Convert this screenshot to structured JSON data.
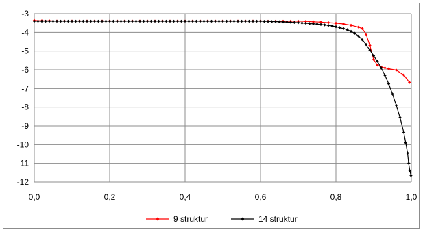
{
  "chart_data": {
    "type": "line",
    "title": "",
    "xlabel": "",
    "ylabel": "",
    "xlim": [
      0,
      1
    ],
    "ylim": [
      -12,
      -3
    ],
    "grid": true,
    "legend_position": "bottom",
    "x_ticks": [
      "0,0",
      "0,2",
      "0,4",
      "0,6",
      "0,8",
      "1,0"
    ],
    "y_ticks": [
      "-3",
      "-4",
      "-5",
      "-6",
      "-7",
      "-8",
      "-9",
      "-10",
      "-11",
      "-12"
    ],
    "series": [
      {
        "name": "9 struktur",
        "color": "#ff0000",
        "marker": "diamond",
        "points": [
          [
            0.0,
            -3.36
          ],
          [
            0.02,
            -3.38
          ],
          [
            0.04,
            -3.38
          ],
          [
            0.06,
            -3.39
          ],
          [
            0.08,
            -3.39
          ],
          [
            0.1,
            -3.39
          ],
          [
            0.12,
            -3.39
          ],
          [
            0.14,
            -3.39
          ],
          [
            0.16,
            -3.39
          ],
          [
            0.18,
            -3.39
          ],
          [
            0.2,
            -3.39
          ],
          [
            0.22,
            -3.39
          ],
          [
            0.24,
            -3.39
          ],
          [
            0.26,
            -3.39
          ],
          [
            0.28,
            -3.39
          ],
          [
            0.3,
            -3.39
          ],
          [
            0.32,
            -3.39
          ],
          [
            0.34,
            -3.39
          ],
          [
            0.36,
            -3.39
          ],
          [
            0.38,
            -3.39
          ],
          [
            0.4,
            -3.39
          ],
          [
            0.42,
            -3.39
          ],
          [
            0.44,
            -3.39
          ],
          [
            0.46,
            -3.39
          ],
          [
            0.48,
            -3.39
          ],
          [
            0.5,
            -3.39
          ],
          [
            0.52,
            -3.39
          ],
          [
            0.54,
            -3.39
          ],
          [
            0.56,
            -3.39
          ],
          [
            0.58,
            -3.39
          ],
          [
            0.6,
            -3.39
          ],
          [
            0.62,
            -3.4
          ],
          [
            0.64,
            -3.4
          ],
          [
            0.66,
            -3.4
          ],
          [
            0.68,
            -3.4
          ],
          [
            0.7,
            -3.4
          ],
          [
            0.72,
            -3.41
          ],
          [
            0.74,
            -3.43
          ],
          [
            0.76,
            -3.45
          ],
          [
            0.78,
            -3.48
          ],
          [
            0.8,
            -3.51
          ],
          [
            0.82,
            -3.55
          ],
          [
            0.84,
            -3.62
          ],
          [
            0.86,
            -3.72
          ],
          [
            0.87,
            -3.8
          ],
          [
            0.88,
            -4.1
          ],
          [
            0.89,
            -4.7
          ],
          [
            0.9,
            -5.45
          ],
          [
            0.91,
            -5.75
          ],
          [
            0.92,
            -5.85
          ],
          [
            0.93,
            -5.9
          ],
          [
            0.94,
            -5.95
          ],
          [
            0.96,
            -6.02
          ],
          [
            0.98,
            -6.28
          ],
          [
            0.995,
            -6.68
          ]
        ]
      },
      {
        "name": "14 struktur",
        "color": "#000000",
        "marker": "diamond",
        "points": [
          [
            0.0,
            -3.4
          ],
          [
            0.01,
            -3.4
          ],
          [
            0.02,
            -3.4
          ],
          [
            0.03,
            -3.4
          ],
          [
            0.04,
            -3.4
          ],
          [
            0.05,
            -3.4
          ],
          [
            0.06,
            -3.4
          ],
          [
            0.07,
            -3.4
          ],
          [
            0.08,
            -3.4
          ],
          [
            0.09,
            -3.4
          ],
          [
            0.1,
            -3.4
          ],
          [
            0.11,
            -3.4
          ],
          [
            0.12,
            -3.4
          ],
          [
            0.13,
            -3.4
          ],
          [
            0.14,
            -3.4
          ],
          [
            0.15,
            -3.4
          ],
          [
            0.16,
            -3.4
          ],
          [
            0.17,
            -3.4
          ],
          [
            0.18,
            -3.4
          ],
          [
            0.19,
            -3.4
          ],
          [
            0.2,
            -3.4
          ],
          [
            0.21,
            -3.4
          ],
          [
            0.22,
            -3.4
          ],
          [
            0.23,
            -3.4
          ],
          [
            0.24,
            -3.4
          ],
          [
            0.25,
            -3.4
          ],
          [
            0.26,
            -3.4
          ],
          [
            0.27,
            -3.4
          ],
          [
            0.28,
            -3.4
          ],
          [
            0.29,
            -3.4
          ],
          [
            0.3,
            -3.4
          ],
          [
            0.31,
            -3.4
          ],
          [
            0.32,
            -3.4
          ],
          [
            0.33,
            -3.4
          ],
          [
            0.34,
            -3.4
          ],
          [
            0.35,
            -3.4
          ],
          [
            0.36,
            -3.4
          ],
          [
            0.37,
            -3.4
          ],
          [
            0.38,
            -3.4
          ],
          [
            0.39,
            -3.4
          ],
          [
            0.4,
            -3.4
          ],
          [
            0.41,
            -3.4
          ],
          [
            0.42,
            -3.4
          ],
          [
            0.43,
            -3.4
          ],
          [
            0.44,
            -3.4
          ],
          [
            0.45,
            -3.4
          ],
          [
            0.46,
            -3.4
          ],
          [
            0.47,
            -3.4
          ],
          [
            0.48,
            -3.4
          ],
          [
            0.49,
            -3.4
          ],
          [
            0.5,
            -3.4
          ],
          [
            0.51,
            -3.4
          ],
          [
            0.52,
            -3.4
          ],
          [
            0.53,
            -3.4
          ],
          [
            0.54,
            -3.4
          ],
          [
            0.55,
            -3.4
          ],
          [
            0.56,
            -3.4
          ],
          [
            0.57,
            -3.4
          ],
          [
            0.58,
            -3.4
          ],
          [
            0.59,
            -3.4
          ],
          [
            0.6,
            -3.4
          ],
          [
            0.61,
            -3.41
          ],
          [
            0.62,
            -3.41
          ],
          [
            0.63,
            -3.42
          ],
          [
            0.64,
            -3.42
          ],
          [
            0.65,
            -3.43
          ],
          [
            0.66,
            -3.44
          ],
          [
            0.67,
            -3.45
          ],
          [
            0.68,
            -3.46
          ],
          [
            0.69,
            -3.47
          ],
          [
            0.7,
            -3.48
          ],
          [
            0.71,
            -3.5
          ],
          [
            0.72,
            -3.51
          ],
          [
            0.73,
            -3.53
          ],
          [
            0.74,
            -3.54
          ],
          [
            0.75,
            -3.56
          ],
          [
            0.76,
            -3.58
          ],
          [
            0.77,
            -3.6
          ],
          [
            0.78,
            -3.63
          ],
          [
            0.79,
            -3.66
          ],
          [
            0.8,
            -3.7
          ],
          [
            0.81,
            -3.75
          ],
          [
            0.82,
            -3.8
          ],
          [
            0.83,
            -3.86
          ],
          [
            0.84,
            -3.95
          ],
          [
            0.85,
            -4.05
          ],
          [
            0.86,
            -4.2
          ],
          [
            0.87,
            -4.4
          ],
          [
            0.88,
            -4.65
          ],
          [
            0.89,
            -4.95
          ],
          [
            0.9,
            -5.25
          ],
          [
            0.91,
            -5.55
          ],
          [
            0.92,
            -5.9
          ],
          [
            0.93,
            -6.3
          ],
          [
            0.94,
            -6.75
          ],
          [
            0.95,
            -7.3
          ],
          [
            0.96,
            -7.9
          ],
          [
            0.97,
            -8.55
          ],
          [
            0.98,
            -9.35
          ],
          [
            0.985,
            -9.9
          ],
          [
            0.99,
            -10.45
          ],
          [
            0.993,
            -11.0
          ],
          [
            0.996,
            -11.4
          ],
          [
            0.999,
            -11.65
          ]
        ]
      }
    ]
  }
}
